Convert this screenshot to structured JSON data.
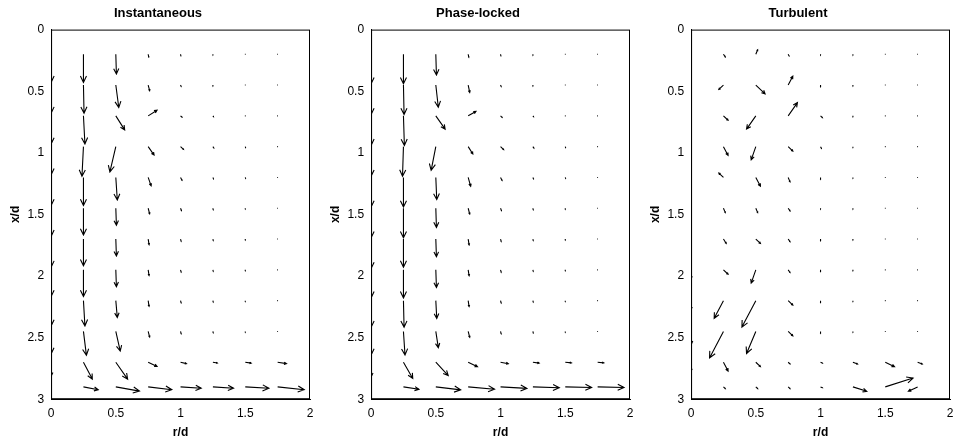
{
  "chart_data": [
    {
      "type": "quiver",
      "title": "Instantaneous",
      "x_label": "r/d",
      "y_label": "x/d",
      "xlim": [
        0,
        2
      ],
      "xticks": [
        0,
        0.5,
        1,
        1.5,
        2
      ],
      "ylim": [
        3,
        0
      ],
      "yticks": [
        0,
        0.5,
        1,
        1.5,
        2,
        2.5,
        3
      ],
      "grid": false,
      "color": "#000000",
      "r": [
        0,
        0.25,
        0.5,
        0.75,
        1,
        1.25,
        1.5,
        1.75
      ],
      "x": [
        0.2,
        0.45,
        0.7,
        0.95,
        1.2,
        1.45,
        1.7,
        1.95,
        2.2,
        2.45,
        2.7,
        2.9
      ],
      "u": [
        [
          0,
          0,
          0.02,
          0.02,
          0.01,
          0,
          0,
          0
        ],
        [
          0,
          0.02,
          0.1,
          0.05,
          0.02,
          0,
          0,
          0
        ],
        [
          0,
          0.05,
          0.3,
          0.3,
          0.05,
          0.02,
          0,
          0
        ],
        [
          0,
          -0.05,
          -0.2,
          0.2,
          0.1,
          0.03,
          0.01,
          0
        ],
        [
          0,
          0,
          0.05,
          0.1,
          0.05,
          0.02,
          0.01,
          0
        ],
        [
          0,
          0,
          0.02,
          0.05,
          0.03,
          0.01,
          0,
          0
        ],
        [
          0,
          0,
          0.02,
          0.03,
          0.02,
          0.01,
          0,
          0
        ],
        [
          0,
          0,
          0.02,
          0.03,
          0.02,
          0.01,
          0,
          0
        ],
        [
          0,
          0.05,
          0.05,
          0.03,
          0.02,
          0.01,
          0,
          0
        ],
        [
          0,
          0.1,
          0.15,
          0.05,
          0.02,
          0.01,
          0,
          0
        ],
        [
          0,
          0.3,
          0.4,
          0.3,
          0.2,
          0.15,
          0.2,
          0.3
        ],
        [
          0,
          0.5,
          0.8,
          0.8,
          0.7,
          0.7,
          0.8,
          0.9
        ]
      ],
      "v": [
        [
          1.0,
          1.0,
          0.7,
          0.1,
          0.05,
          0.03,
          0.02,
          0.02
        ],
        [
          1.0,
          1.0,
          0.8,
          0.2,
          0.05,
          0.03,
          0.02,
          0.02
        ],
        [
          1.0,
          1.0,
          0.5,
          -0.2,
          0.05,
          0.03,
          0.02,
          0.02
        ],
        [
          1.0,
          1.05,
          0.9,
          0.3,
          0.1,
          0.05,
          0.03,
          0.02
        ],
        [
          1.0,
          1.0,
          0.8,
          0.3,
          0.1,
          0.05,
          0.03,
          0.02
        ],
        [
          1.0,
          0.95,
          0.6,
          0.2,
          0.08,
          0.05,
          0.03,
          0.02
        ],
        [
          1.0,
          0.95,
          0.6,
          0.2,
          0.08,
          0.05,
          0.03,
          0.02
        ],
        [
          0.95,
          0.95,
          0.6,
          0.2,
          0.08,
          0.05,
          0.03,
          0.02
        ],
        [
          0.9,
          0.9,
          0.6,
          0.2,
          0.08,
          0.05,
          0.03,
          0.02
        ],
        [
          0.8,
          0.85,
          0.7,
          0.2,
          0.08,
          0.05,
          0.03,
          0.02
        ],
        [
          0.5,
          0.6,
          0.6,
          0.15,
          0.05,
          0.03,
          0.03,
          0.05
        ],
        [
          0.05,
          0.1,
          0.15,
          0.1,
          0.05,
          0.05,
          0.05,
          0.1
        ]
      ]
    },
    {
      "type": "quiver",
      "title": "Phase-locked",
      "x_label": "r/d",
      "y_label": "x/d",
      "xlim": [
        0,
        2
      ],
      "xticks": [
        0,
        0.5,
        1,
        1.5,
        2
      ],
      "ylim": [
        3,
        0
      ],
      "yticks": [
        0,
        0.5,
        1,
        1.5,
        2,
        2.5,
        3
      ],
      "grid": false,
      "color": "#000000",
      "r": [
        0,
        0.25,
        0.5,
        0.75,
        1,
        1.25,
        1.5,
        1.75
      ],
      "x": [
        0.2,
        0.45,
        0.7,
        0.95,
        1.2,
        1.45,
        1.7,
        1.95,
        2.2,
        2.45,
        2.7,
        2.9
      ],
      "u": [
        [
          0,
          0,
          0.02,
          0.02,
          0.01,
          0,
          0,
          0
        ],
        [
          0,
          0.02,
          0.08,
          0.05,
          0.02,
          0,
          0,
          0
        ],
        [
          0,
          0.03,
          0.3,
          0.25,
          0.05,
          0.02,
          0,
          0
        ],
        [
          0,
          -0.03,
          -0.15,
          0.15,
          0.1,
          0.03,
          0.01,
          0
        ],
        [
          0,
          0,
          0.03,
          0.08,
          0.05,
          0.02,
          0.01,
          0
        ],
        [
          0,
          0,
          0.02,
          0.05,
          0.03,
          0.01,
          0,
          0
        ],
        [
          0,
          0,
          0.02,
          0.03,
          0.02,
          0.01,
          0,
          0
        ],
        [
          0,
          0,
          0.02,
          0.03,
          0.02,
          0.01,
          0,
          0
        ],
        [
          0,
          0.02,
          0.03,
          0.03,
          0.02,
          0.01,
          0,
          0
        ],
        [
          0,
          0.05,
          0.08,
          0.05,
          0.02,
          0.01,
          0,
          0
        ],
        [
          0,
          0.3,
          0.4,
          0.3,
          0.25,
          0.2,
          0.2,
          0.2
        ],
        [
          0,
          0.5,
          0.8,
          0.85,
          0.85,
          0.85,
          0.85,
          0.85
        ]
      ],
      "v": [
        [
          1.0,
          1.0,
          0.7,
          0.1,
          0.05,
          0.03,
          0.02,
          0.02
        ],
        [
          1.0,
          1.0,
          0.75,
          0.25,
          0.05,
          0.03,
          0.02,
          0.02
        ],
        [
          1.0,
          1.0,
          0.45,
          -0.15,
          0.05,
          0.03,
          0.02,
          0.02
        ],
        [
          1.0,
          1.0,
          0.8,
          0.25,
          0.1,
          0.05,
          0.03,
          0.02
        ],
        [
          1.0,
          1.0,
          0.75,
          0.3,
          0.1,
          0.05,
          0.03,
          0.02
        ],
        [
          1.0,
          1.0,
          0.65,
          0.2,
          0.08,
          0.05,
          0.03,
          0.02
        ],
        [
          1.0,
          0.95,
          0.6,
          0.2,
          0.08,
          0.05,
          0.03,
          0.02
        ],
        [
          0.95,
          0.95,
          0.6,
          0.2,
          0.08,
          0.05,
          0.03,
          0.02
        ],
        [
          0.9,
          0.9,
          0.6,
          0.2,
          0.08,
          0.05,
          0.03,
          0.02
        ],
        [
          0.8,
          0.8,
          0.55,
          0.2,
          0.08,
          0.05,
          0.03,
          0.02
        ],
        [
          0.5,
          0.55,
          0.45,
          0.15,
          0.05,
          0.03,
          0.02,
          0.02
        ],
        [
          0.05,
          0.08,
          0.1,
          0.08,
          0.05,
          0.03,
          0.02,
          0.02
        ]
      ]
    },
    {
      "type": "quiver",
      "title": "Turbulent",
      "x_label": "r/d",
      "y_label": "x/d",
      "xlim": [
        0,
        2
      ],
      "xticks": [
        0,
        0.5,
        1,
        1.5,
        2
      ],
      "ylim": [
        3,
        0
      ],
      "yticks": [
        0,
        0.5,
        1,
        1.5,
        2,
        2.5,
        3
      ],
      "grid": false,
      "color": "#000000",
      "r": [
        0,
        0.25,
        0.5,
        0.75,
        1,
        1.25,
        1.5,
        1.75
      ],
      "x": [
        0.2,
        0.45,
        0.7,
        0.95,
        1.2,
        1.45,
        1.7,
        1.95,
        2.2,
        2.45,
        2.7,
        2.9
      ],
      "u": [
        [
          0,
          0.02,
          0.02,
          0.01,
          0,
          0,
          0,
          0
        ],
        [
          0,
          -0.05,
          0.1,
          0.05,
          0,
          0,
          0,
          0
        ],
        [
          0,
          0.05,
          -0.1,
          0.1,
          0.02,
          0,
          0,
          0
        ],
        [
          0,
          0.05,
          -0.05,
          0.05,
          0.01,
          0,
          0,
          0
        ],
        [
          0,
          -0.05,
          0.05,
          0.02,
          0,
          0,
          0,
          0
        ],
        [
          0,
          0.02,
          0.02,
          0.02,
          0,
          0,
          0,
          0
        ],
        [
          0,
          0.03,
          0.05,
          0.02,
          0,
          0,
          0,
          0
        ],
        [
          0,
          0.05,
          -0.05,
          0.02,
          0,
          0,
          0,
          0
        ],
        [
          0,
          -0.1,
          -0.15,
          0.05,
          0,
          0,
          0,
          0
        ],
        [
          0,
          -0.15,
          -0.1,
          0.05,
          0,
          0,
          0,
          0
        ],
        [
          0,
          0.05,
          0.05,
          0.02,
          0.02,
          0.05,
          0.1,
          0.05
        ],
        [
          0,
          0.02,
          0.02,
          0.02,
          0.02,
          0.15,
          0.3,
          -0.1
        ]
      ],
      "v": [
        [
          0.05,
          0.03,
          -0.05,
          0.02,
          0.01,
          0.01,
          0,
          0
        ],
        [
          0.05,
          0.05,
          0.1,
          -0.1,
          0.02,
          0.01,
          0,
          0
        ],
        [
          0.02,
          0.05,
          0.15,
          -0.15,
          0.02,
          0.01,
          0,
          0
        ],
        [
          -0.05,
          0.1,
          0.15,
          0.05,
          0.02,
          0.01,
          0,
          0
        ],
        [
          0.05,
          -0.05,
          0.1,
          0.05,
          0.02,
          0.01,
          0,
          0
        ],
        [
          0.05,
          0.05,
          0.05,
          0.03,
          0.01,
          0.01,
          0,
          0
        ],
        [
          -0.05,
          0.05,
          0.05,
          0.03,
          0.02,
          0.01,
          0,
          0
        ],
        [
          0.1,
          0.05,
          0.15,
          0.03,
          0.02,
          0.01,
          0,
          0
        ],
        [
          0.1,
          0.2,
          0.3,
          0.05,
          0.02,
          0.01,
          0,
          0
        ],
        [
          0.15,
          0.3,
          0.25,
          0.05,
          0.02,
          0.01,
          0,
          0
        ],
        [
          0.1,
          0.1,
          0.05,
          0.02,
          0.01,
          0.02,
          0.05,
          0.02
        ],
        [
          0.02,
          0.02,
          0.02,
          0.02,
          0.01,
          0.05,
          -0.1,
          0.05
        ]
      ]
    }
  ]
}
